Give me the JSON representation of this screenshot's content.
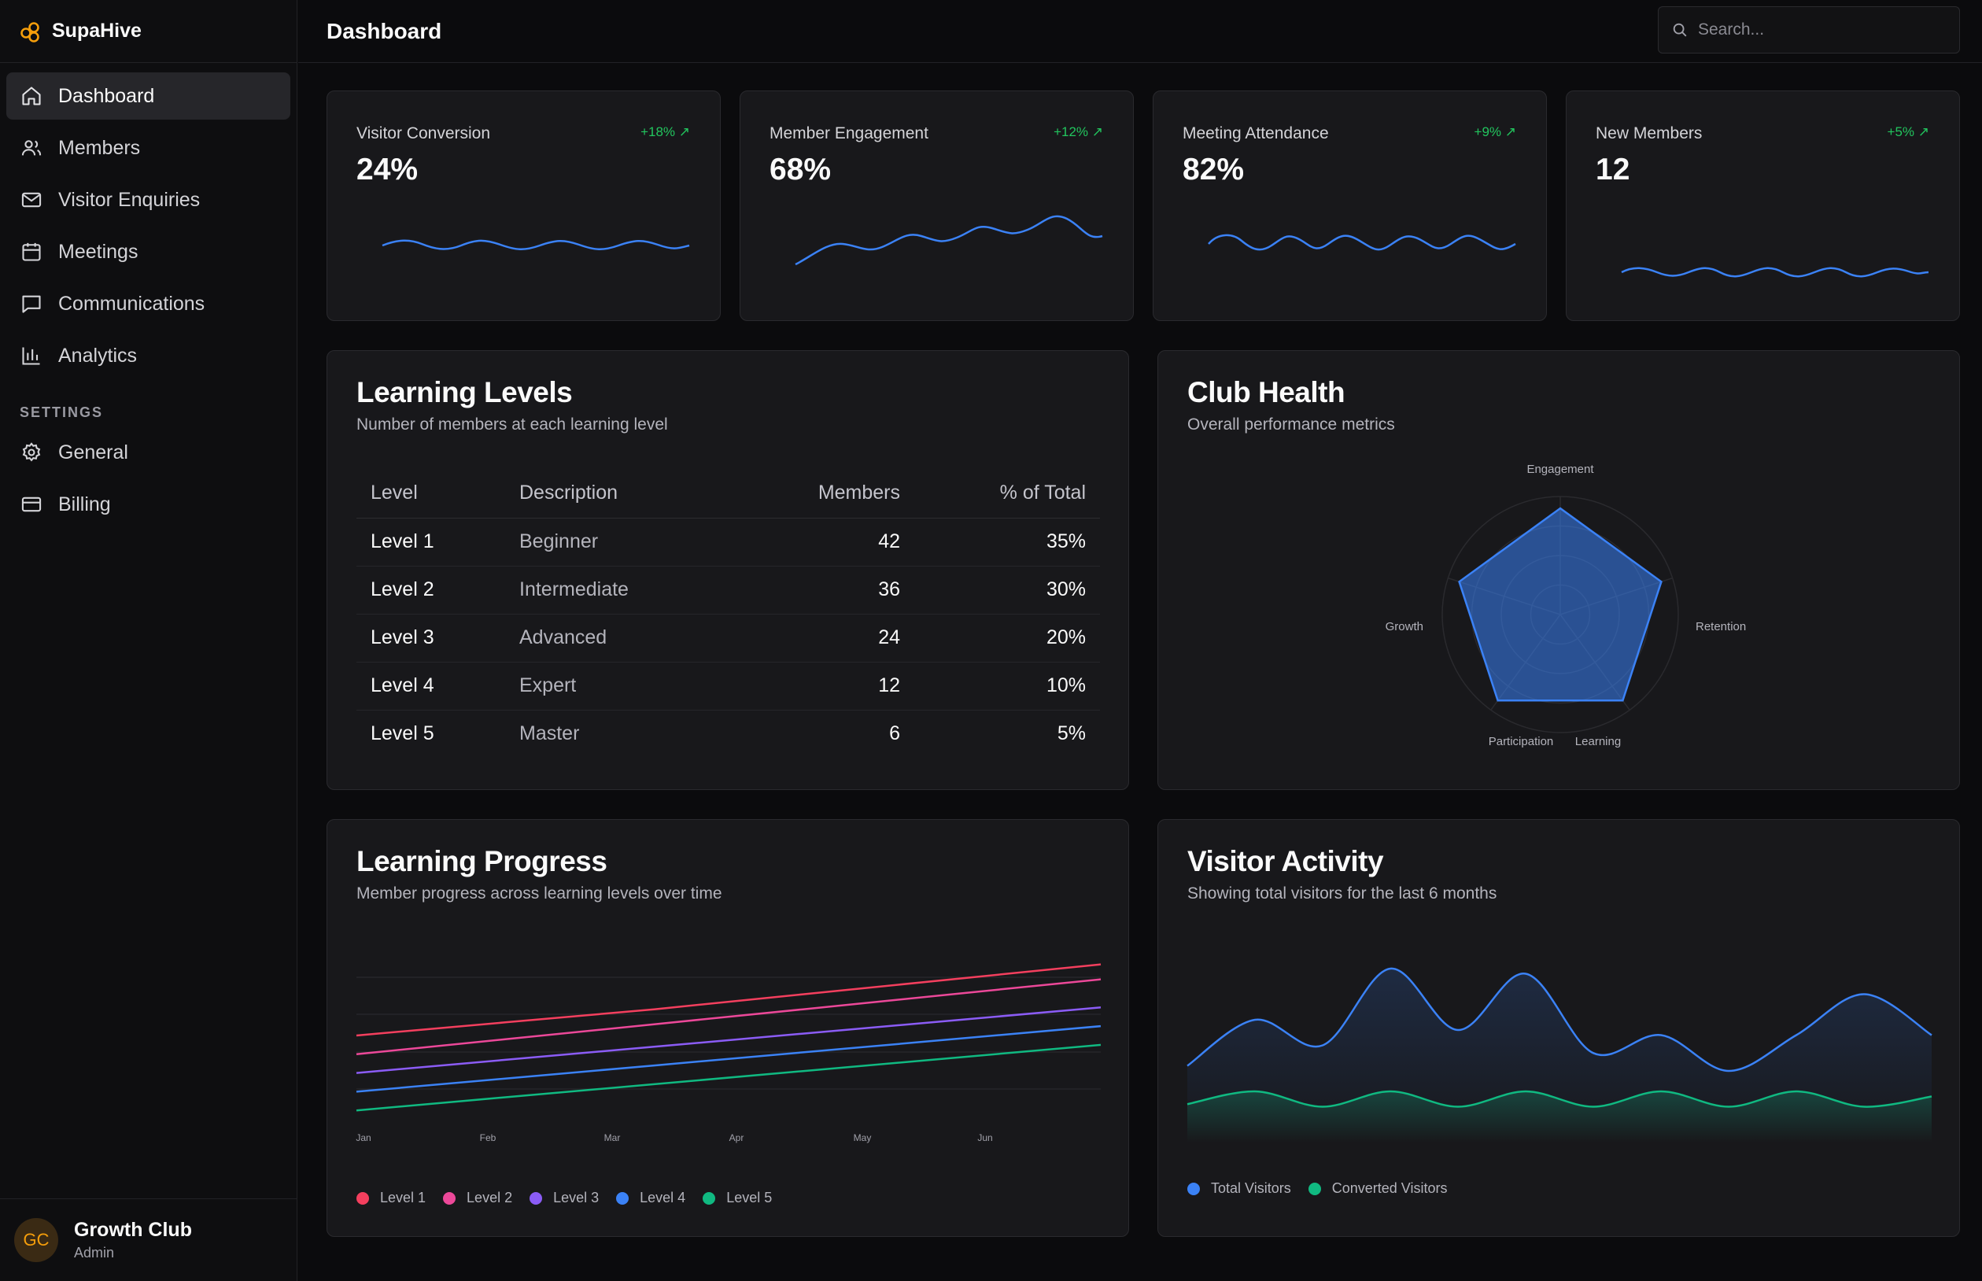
{
  "brand": {
    "name": "SupaHive"
  },
  "header": {
    "title": "Dashboard",
    "search_placeholder": "Search..."
  },
  "nav": {
    "items": [
      {
        "label": "Dashboard",
        "icon": "home-icon",
        "active": true
      },
      {
        "label": "Members",
        "icon": "users-icon"
      },
      {
        "label": "Visitor Enquiries",
        "icon": "mail-icon"
      },
      {
        "label": "Meetings",
        "icon": "calendar-icon"
      },
      {
        "label": "Communications",
        "icon": "message-icon"
      },
      {
        "label": "Analytics",
        "icon": "bar-chart-icon"
      }
    ],
    "settings_label": "SETTINGS",
    "settings_items": [
      {
        "label": "General",
        "icon": "gear-icon"
      },
      {
        "label": "Billing",
        "icon": "credit-card-icon"
      }
    ]
  },
  "user": {
    "initials": "GC",
    "name": "Growth Club",
    "role": "Admin"
  },
  "stats": [
    {
      "label": "Visitor Conversion",
      "value": "24%",
      "change": "+18%"
    },
    {
      "label": "Member Engagement",
      "value": "68%",
      "change": "+12%"
    },
    {
      "label": "Meeting Attendance",
      "value": "82%",
      "change": "+9%"
    },
    {
      "label": "New Members",
      "value": "12",
      "change": "+5%"
    }
  ],
  "learning_levels": {
    "title": "Learning Levels",
    "subtitle": "Number of members at each learning level",
    "columns": [
      "Level",
      "Description",
      "Members",
      "% of Total"
    ],
    "rows": [
      [
        "Level 1",
        "Beginner",
        "42",
        "35%"
      ],
      [
        "Level 2",
        "Intermediate",
        "36",
        "30%"
      ],
      [
        "Level 3",
        "Advanced",
        "24",
        "20%"
      ],
      [
        "Level 4",
        "Expert",
        "12",
        "10%"
      ],
      [
        "Level 5",
        "Master",
        "6",
        "5%"
      ]
    ]
  },
  "club_health": {
    "title": "Club Health",
    "subtitle": "Overall performance metrics"
  },
  "learning_progress": {
    "title": "Learning Progress",
    "subtitle": "Member progress across learning levels over time"
  },
  "visitor_activity": {
    "title": "Visitor Activity",
    "subtitle": "Showing total visitors for the last 6 months"
  },
  "colors": {
    "accent_blue": "#3b82f6",
    "green": "#22c55e",
    "orange": "#f59e0b",
    "red": "#f43f5e",
    "pink": "#ec4899",
    "purple": "#8b5cf6",
    "teal": "#10b981"
  },
  "chart_data": [
    {
      "type": "radar",
      "title": "Club Health",
      "axes": [
        "Engagement",
        "Retention",
        "Learning",
        "Participation",
        "Growth"
      ],
      "values": [
        90,
        90,
        90,
        90,
        90
      ],
      "max": 100
    },
    {
      "type": "line",
      "title": "Learning Progress",
      "categories": [
        "Jan",
        "Feb",
        "Mar",
        "Apr",
        "May",
        "Jun"
      ],
      "series": [
        {
          "name": "Level 1",
          "color": "#f43f5e",
          "values": [
            50,
            57,
            64,
            72,
            80,
            88
          ]
        },
        {
          "name": "Level 2",
          "color": "#ec4899",
          "values": [
            40,
            48,
            56,
            64,
            72,
            80
          ]
        },
        {
          "name": "Level 3",
          "color": "#8b5cf6",
          "values": [
            30,
            37,
            44,
            51,
            58,
            65
          ]
        },
        {
          "name": "Level 4",
          "color": "#3b82f6",
          "values": [
            20,
            27,
            34,
            41,
            48,
            55
          ]
        },
        {
          "name": "Level 5",
          "color": "#10b981",
          "values": [
            10,
            17,
            24,
            31,
            38,
            45
          ]
        }
      ],
      "ylim": [
        0,
        100
      ]
    },
    {
      "type": "area",
      "title": "Visitor Activity",
      "legend": [
        "Total Visitors",
        "Converted Visitors"
      ],
      "series": [
        {
          "name": "Total Visitors",
          "color": "#3b82f6",
          "values": [
            30,
            48,
            38,
            68,
            44,
            66,
            35,
            42,
            28,
            42,
            58,
            42
          ]
        },
        {
          "name": "Converted Visitors",
          "color": "#10b981",
          "values": [
            15,
            20,
            14,
            20,
            14,
            20,
            14,
            20,
            14,
            20,
            14,
            18
          ]
        }
      ],
      "ylim": [
        0,
        80
      ]
    }
  ]
}
